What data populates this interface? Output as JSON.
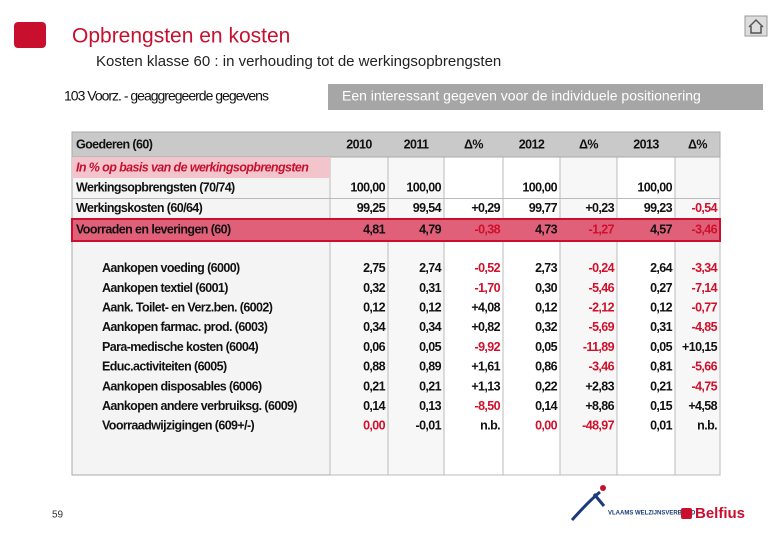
{
  "header": {
    "title": "Opbrengsten en kosten",
    "subtitle": "Kosten klasse 60  : in verhouding tot de werkingsopbrengsten",
    "section_label": "103 Voorz. - geaggregeerde gegevens",
    "callout": "Een interessant gegeven voor de individuele positionering"
  },
  "table": {
    "columns": [
      "Goederen (60)",
      "2010",
      "2011",
      "Δ%",
      "2012",
      "Δ%",
      "2013",
      "Δ%"
    ],
    "subheader": "In % op basis van de werkingsopbrengsten",
    "red_color": "#d0102a",
    "rows": [
      {
        "label": "Werkingsopbrengsten (70/74)",
        "cells": [
          "100,00",
          "100,00",
          "",
          "100,00",
          "",
          "100,00",
          ""
        ],
        "red": []
      },
      {
        "label": "Werkingskosten  (60/64)",
        "cells": [
          "99,25",
          "99,54",
          "+0,29",
          "99,77",
          "+0,23",
          "99,23",
          "-0,54"
        ],
        "red": [
          6
        ]
      },
      {
        "label": "Voorraden en leveringen (60)",
        "cells": [
          "4,81",
          "4,79",
          "-0,38",
          "4,73",
          "-1,27",
          "4,57",
          "-3,46"
        ],
        "red": [
          2,
          4,
          6
        ],
        "highlight": true
      }
    ],
    "detail_rows": [
      {
        "label": "Aankopen voeding (6000)",
        "cells": [
          "2,75",
          "2,74",
          "-0,52",
          "2,73",
          "-0,24",
          "2,64",
          "-3,34"
        ],
        "red": [
          2,
          4,
          6
        ]
      },
      {
        "label": "Aankopen textiel (6001)",
        "cells": [
          "0,32",
          "0,31",
          "-1,70",
          "0,30",
          "-5,46",
          "0,27",
          "-7,14"
        ],
        "red": [
          2,
          4,
          6
        ]
      },
      {
        "label": "Aank. Toilet- en Verz.ben. (6002)",
        "cells": [
          "0,12",
          "0,12",
          "+4,08",
          "0,12",
          "-2,12",
          "0,12",
          "-0,77"
        ],
        "red": [
          4,
          6
        ]
      },
      {
        "label": "Aankopen farmac. prod. (6003)",
        "cells": [
          "0,34",
          "0,34",
          "+0,82",
          "0,32",
          "-5,69",
          "0,31",
          "-4,85"
        ],
        "red": [
          4,
          6
        ]
      },
      {
        "label": "Para-medische kosten (6004)",
        "cells": [
          "0,06",
          "0,05",
          "-9,92",
          "0,05",
          "-11,89",
          "0,05",
          "+10,15"
        ],
        "red": [
          2,
          4
        ]
      },
      {
        "label": "Educ.activiteiten (6005)",
        "cells": [
          "0,88",
          "0,89",
          "+1,61",
          "0,86",
          "-3,46",
          "0,81",
          "-5,66"
        ],
        "red": [
          4,
          6
        ]
      },
      {
        "label": "Aankopen disposables (6006)",
        "cells": [
          "0,21",
          "0,21",
          "+1,13",
          "0,22",
          "+2,83",
          "0,21",
          "-4,75"
        ],
        "red": [
          6
        ]
      },
      {
        "label": "Aankopen andere verbruiksg. (6009)",
        "cells": [
          "0,14",
          "0,13",
          "-8,50",
          "0,14",
          "+8,86",
          "0,15",
          "+4,58"
        ],
        "red": [
          2
        ]
      },
      {
        "label": "Voorraadwijzigingen (609+/-)",
        "cells": [
          "0,00",
          "-0,01",
          "n.b.",
          "0,00",
          "-48,97",
          "0,01",
          "n.b."
        ],
        "red": [
          0,
          3,
          4
        ]
      }
    ]
  },
  "footer": {
    "page_number": "59",
    "logo_left": "VLAAMS WELZIJNSVERBOND",
    "logo_right": "Belfius"
  }
}
